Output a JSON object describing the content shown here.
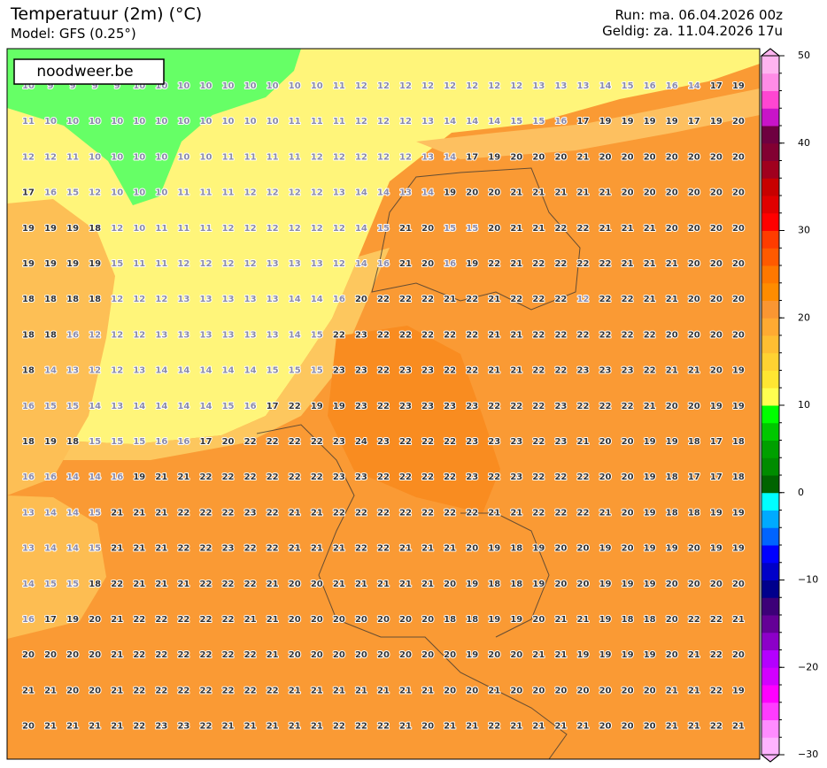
{
  "header": {
    "title": "Temperatuur (2m) (°C)",
    "model": "Model: GFS (0.25°)",
    "run": "Run: ma. 06.04.2026 00z",
    "valid": "Geldig: za. 11.04.2026 17u"
  },
  "logo": "noodweer.be",
  "map": {
    "low_color": "#8a8aaa",
    "high_color": "#333333",
    "low_below": 17,
    "values": [
      [
        10,
        9,
        9,
        9,
        9,
        10,
        10,
        10,
        10,
        10,
        10,
        10,
        10,
        10,
        11,
        12,
        12,
        12,
        12,
        12,
        12,
        12,
        12,
        13,
        13,
        13,
        14,
        15,
        16,
        16,
        14,
        17,
        19
      ],
      [
        11,
        10,
        10,
        10,
        10,
        10,
        10,
        10,
        10,
        10,
        10,
        10,
        11,
        11,
        11,
        12,
        12,
        12,
        13,
        14,
        14,
        14,
        15,
        15,
        16,
        17,
        19,
        19,
        19,
        19,
        17,
        19,
        20
      ],
      [
        12,
        12,
        11,
        10,
        10,
        10,
        10,
        10,
        10,
        11,
        11,
        11,
        11,
        12,
        12,
        12,
        12,
        12,
        13,
        14,
        17,
        19,
        20,
        20,
        20,
        21,
        20,
        20,
        20,
        20,
        20,
        20,
        20
      ],
      [
        17,
        16,
        15,
        12,
        10,
        10,
        10,
        11,
        11,
        11,
        12,
        12,
        12,
        12,
        13,
        14,
        14,
        13,
        14,
        19,
        20,
        20,
        21,
        21,
        21,
        21,
        21,
        20,
        20,
        20,
        20,
        20,
        20
      ],
      [
        19,
        19,
        19,
        18,
        12,
        10,
        11,
        11,
        11,
        12,
        12,
        12,
        12,
        12,
        12,
        14,
        15,
        21,
        20,
        15,
        15,
        20,
        21,
        21,
        22,
        22,
        21,
        21,
        21,
        20,
        20,
        20,
        20
      ],
      [
        19,
        19,
        19,
        19,
        15,
        11,
        11,
        12,
        12,
        12,
        12,
        13,
        13,
        13,
        12,
        14,
        16,
        21,
        20,
        16,
        19,
        22,
        21,
        22,
        22,
        22,
        22,
        21,
        21,
        21,
        20,
        20,
        20
      ],
      [
        18,
        18,
        18,
        18,
        12,
        12,
        12,
        13,
        13,
        13,
        13,
        13,
        14,
        14,
        16,
        20,
        22,
        22,
        22,
        21,
        22,
        21,
        22,
        22,
        22,
        12,
        22,
        22,
        21,
        21,
        20,
        20,
        20
      ],
      [
        18,
        18,
        16,
        12,
        12,
        12,
        13,
        13,
        13,
        13,
        13,
        13,
        14,
        15,
        22,
        23,
        22,
        22,
        22,
        22,
        22,
        21,
        21,
        22,
        22,
        22,
        22,
        22,
        22,
        20,
        20,
        20,
        20
      ],
      [
        18,
        14,
        13,
        12,
        12,
        13,
        14,
        14,
        14,
        14,
        14,
        15,
        15,
        15,
        23,
        23,
        22,
        23,
        23,
        22,
        22,
        21,
        21,
        22,
        22,
        23,
        23,
        23,
        22,
        21,
        21,
        20,
        19
      ],
      [
        16,
        15,
        15,
        14,
        13,
        14,
        14,
        14,
        14,
        15,
        16,
        17,
        22,
        19,
        19,
        23,
        22,
        23,
        23,
        23,
        23,
        22,
        22,
        22,
        23,
        22,
        22,
        22,
        21,
        20,
        20,
        19,
        19
      ],
      [
        18,
        19,
        18,
        15,
        15,
        15,
        16,
        16,
        17,
        20,
        22,
        22,
        22,
        22,
        23,
        24,
        23,
        22,
        22,
        22,
        23,
        23,
        23,
        22,
        23,
        21,
        20,
        20,
        19,
        19,
        18,
        17,
        18
      ],
      [
        16,
        16,
        14,
        14,
        16,
        19,
        21,
        21,
        22,
        22,
        22,
        22,
        22,
        22,
        23,
        23,
        22,
        22,
        22,
        22,
        23,
        22,
        23,
        22,
        22,
        22,
        20,
        20,
        19,
        18,
        17,
        17,
        18
      ],
      [
        13,
        14,
        14,
        15,
        21,
        21,
        21,
        22,
        22,
        22,
        23,
        22,
        21,
        21,
        22,
        22,
        22,
        22,
        22,
        22,
        22,
        21,
        21,
        22,
        22,
        22,
        21,
        20,
        19,
        18,
        18,
        19,
        19
      ],
      [
        13,
        14,
        14,
        15,
        21,
        21,
        21,
        22,
        22,
        23,
        22,
        22,
        21,
        21,
        21,
        22,
        22,
        21,
        21,
        21,
        20,
        19,
        18,
        19,
        20,
        20,
        19,
        20,
        19,
        19,
        20,
        19,
        19
      ],
      [
        14,
        15,
        15,
        18,
        22,
        21,
        21,
        21,
        22,
        22,
        22,
        21,
        20,
        20,
        21,
        21,
        21,
        21,
        21,
        20,
        19,
        18,
        18,
        19,
        20,
        20,
        19,
        19,
        19,
        20,
        20,
        20,
        20
      ],
      [
        16,
        17,
        19,
        20,
        21,
        22,
        22,
        22,
        22,
        22,
        21,
        21,
        20,
        20,
        20,
        20,
        20,
        20,
        20,
        18,
        18,
        19,
        19,
        20,
        21,
        21,
        19,
        18,
        18,
        20,
        22,
        22,
        21
      ],
      [
        20,
        20,
        20,
        20,
        21,
        22,
        22,
        22,
        22,
        22,
        22,
        21,
        20,
        20,
        20,
        20,
        20,
        20,
        20,
        20,
        19,
        20,
        20,
        21,
        21,
        19,
        19,
        19,
        19,
        20,
        21,
        22,
        20
      ],
      [
        21,
        21,
        20,
        20,
        21,
        22,
        22,
        22,
        22,
        22,
        22,
        22,
        21,
        21,
        21,
        21,
        21,
        21,
        21,
        20,
        20,
        21,
        20,
        20,
        20,
        20,
        20,
        20,
        20,
        21,
        21,
        22,
        19
      ],
      [
        20,
        21,
        21,
        21,
        21,
        22,
        23,
        23,
        22,
        21,
        21,
        21,
        21,
        21,
        22,
        22,
        22,
        21,
        20,
        21,
        21,
        22,
        21,
        21,
        21,
        21,
        20,
        20,
        20,
        21,
        21,
        22,
        21
      ]
    ]
  },
  "colorbar": {
    "lim": [
      -30,
      50
    ],
    "ticks": [
      50,
      40,
      30,
      20,
      10,
      0,
      {
        "value": -10,
        "label": "−10"
      },
      {
        "value": -20,
        "label": "−20"
      },
      {
        "value": -30,
        "label": "−30"
      }
    ],
    "colors": [
      "#ffb4ff",
      "#ff8cff",
      "#ff3cff",
      "#ff00ff",
      "#d200ff",
      "#b400ff",
      "#8c00c8",
      "#640096",
      "#3c0078",
      "#00008c",
      "#0000c8",
      "#0000ff",
      "#0064ff",
      "#00aaff",
      "#00ffff",
      "#006400",
      "#008c00",
      "#00a000",
      "#00c800",
      "#00ff00",
      "#ffff50",
      "#ffe632",
      "#ffd232",
      "#ffbe32",
      "#ffaa32",
      "#fa9632",
      "#ff8c00",
      "#ff7800",
      "#ff5a00",
      "#ff3c00",
      "#ff0000",
      "#e00000",
      "#c80000",
      "#a0001e",
      "#820032",
      "#6e0040",
      "#c814c8",
      "#ff46d2",
      "#ff8ce6",
      "#ffb4f0"
    ]
  }
}
